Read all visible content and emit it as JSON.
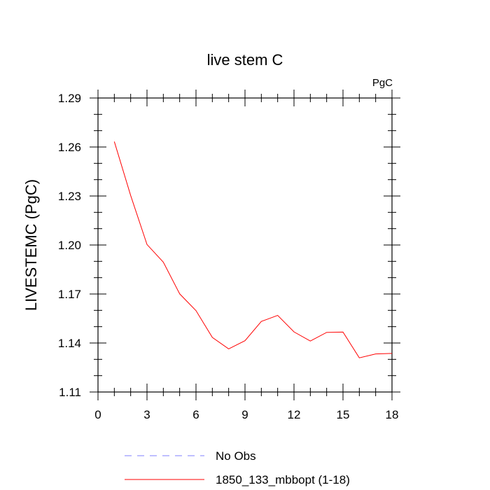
{
  "chart_data": {
    "type": "line",
    "title": "live stem C",
    "units_label": "PgC",
    "ylabel": "LIVESTEMC  (PgC)",
    "xlabel": "",
    "xlim": [
      0,
      18
    ],
    "ylim": [
      1.11,
      1.29
    ],
    "x_ticks": [
      0,
      3,
      6,
      9,
      12,
      15,
      18
    ],
    "y_ticks": [
      1.11,
      1.14,
      1.17,
      1.2,
      1.23,
      1.26,
      1.29
    ],
    "x_tick_labels": [
      "0",
      "3",
      "6",
      "9",
      "12",
      "15",
      "18"
    ],
    "y_tick_labels": [
      "1.11",
      "1.14",
      "1.17",
      "1.20",
      "1.23",
      "1.26",
      "1.29"
    ],
    "series": [
      {
        "name": "1850_133_mbbopt (1-18)",
        "color": "#ff0000",
        "style": "solid",
        "x": [
          1,
          2,
          3,
          4,
          5,
          6,
          7,
          8,
          9,
          10,
          11,
          12,
          13,
          14,
          15,
          16,
          17,
          18
        ],
        "values": [
          1.2633,
          1.2303,
          1.2003,
          1.1895,
          1.1701,
          1.1598,
          1.1434,
          1.1364,
          1.1414,
          1.1532,
          1.1569,
          1.1468,
          1.1412,
          1.1465,
          1.1467,
          1.1309,
          1.1333,
          1.1336
        ]
      },
      {
        "name": "No Obs",
        "color": "#7f7fff",
        "style": "dashed",
        "x": [],
        "values": []
      }
    ],
    "legend": {
      "placement": "bottom",
      "entries": [
        "No Obs",
        "1850_133_mbbopt (1-18)"
      ]
    }
  }
}
